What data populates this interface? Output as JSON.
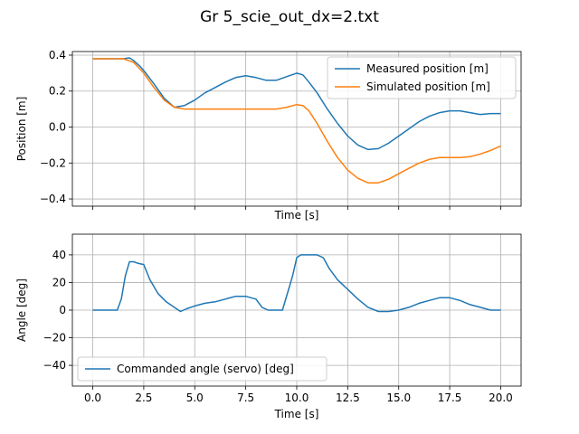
{
  "figure": {
    "title": "Gr 5_scie_out_dx=2.txt"
  },
  "colors": {
    "measured": "#1f77b4",
    "simulated": "#ff7f0e",
    "commanded": "#1f77b4",
    "grid": "#b0b0b0"
  },
  "chart_data": [
    {
      "type": "line",
      "title": "",
      "xlabel": "Time [s]",
      "ylabel": "Position [m]",
      "xlim": [
        -1.0,
        21.0
      ],
      "ylim": [
        -0.44,
        0.42
      ],
      "grid": true,
      "legend_position": "top-right",
      "x_ticks": [
        0,
        2.5,
        5,
        7.5,
        10,
        12.5,
        15,
        17.5,
        20
      ],
      "x_tick_labels_shown": false,
      "y_ticks": [
        -0.4,
        -0.2,
        0.0,
        0.2,
        0.4
      ],
      "y_tick_labels": [
        "−0.4",
        "−0.2",
        "0.0",
        "0.2",
        "0.4"
      ],
      "series": [
        {
          "name": "Measured position [m]",
          "color": "#1f77b4",
          "x": [
            0,
            0.5,
            1.0,
            1.5,
            1.8,
            2.0,
            2.3,
            2.6,
            3.0,
            3.5,
            4.0,
            4.5,
            5.0,
            5.5,
            6.0,
            6.5,
            7.0,
            7.5,
            8.0,
            8.5,
            9.0,
            9.5,
            10.0,
            10.3,
            10.6,
            11.0,
            11.5,
            12.0,
            12.5,
            13.0,
            13.5,
            14.0,
            14.5,
            15.0,
            15.5,
            16.0,
            16.5,
            17.0,
            17.5,
            18.0,
            18.5,
            19.0,
            19.5,
            20.0
          ],
          "y": [
            0.38,
            0.38,
            0.38,
            0.38,
            0.385,
            0.37,
            0.34,
            0.3,
            0.24,
            0.16,
            0.11,
            0.12,
            0.15,
            0.19,
            0.22,
            0.25,
            0.275,
            0.285,
            0.275,
            0.26,
            0.26,
            0.28,
            0.3,
            0.29,
            0.25,
            0.19,
            0.1,
            0.02,
            -0.05,
            -0.1,
            -0.125,
            -0.12,
            -0.09,
            -0.05,
            -0.01,
            0.03,
            0.06,
            0.08,
            0.09,
            0.09,
            0.08,
            0.07,
            0.075,
            0.075
          ]
        },
        {
          "name": "Simulated position [m]",
          "color": "#ff7f0e",
          "x": [
            0,
            0.5,
            1.0,
            1.5,
            2.0,
            2.5,
            3.0,
            3.5,
            4.0,
            4.5,
            5.0,
            6.0,
            7.0,
            8.0,
            9.0,
            9.5,
            10.0,
            10.3,
            10.6,
            11.0,
            11.5,
            12.0,
            12.5,
            13.0,
            13.5,
            14.0,
            14.5,
            15.0,
            15.5,
            16.0,
            16.5,
            17.0,
            17.5,
            18.0,
            18.5,
            19.0,
            19.5,
            20.0
          ],
          "y": [
            0.38,
            0.38,
            0.38,
            0.38,
            0.36,
            0.3,
            0.22,
            0.15,
            0.11,
            0.1,
            0.1,
            0.1,
            0.1,
            0.1,
            0.1,
            0.11,
            0.125,
            0.12,
            0.09,
            0.02,
            -0.08,
            -0.17,
            -0.24,
            -0.285,
            -0.31,
            -0.31,
            -0.29,
            -0.26,
            -0.23,
            -0.2,
            -0.18,
            -0.17,
            -0.17,
            -0.17,
            -0.165,
            -0.15,
            -0.13,
            -0.105
          ]
        }
      ]
    },
    {
      "type": "line",
      "title": "",
      "xlabel": "Time [s]",
      "ylabel": "Angle [deg]",
      "xlim": [
        -1.0,
        21.0
      ],
      "ylim": [
        -55,
        55
      ],
      "grid": true,
      "legend_position": "bottom-left",
      "x_ticks": [
        0,
        2.5,
        5,
        7.5,
        10,
        12.5,
        15,
        17.5,
        20
      ],
      "x_tick_labels": [
        "0.0",
        "2.5",
        "5.0",
        "7.5",
        "10.0",
        "12.5",
        "15.0",
        "17.5",
        "20.0"
      ],
      "y_ticks": [
        -40,
        -20,
        0,
        20,
        40
      ],
      "y_tick_labels": [
        "−40",
        "−20",
        "0",
        "20",
        "40"
      ],
      "series": [
        {
          "name": "Commanded angle (servo) [deg]",
          "color": "#1f77b4",
          "x": [
            0,
            0.5,
            1.0,
            1.2,
            1.4,
            1.6,
            1.8,
            2.0,
            2.2,
            2.5,
            2.8,
            3.2,
            3.6,
            4.0,
            4.3,
            4.6,
            5.0,
            5.5,
            6.0,
            6.5,
            7.0,
            7.5,
            8.0,
            8.3,
            8.6,
            9.0,
            9.3,
            9.6,
            9.8,
            10.0,
            10.2,
            10.5,
            11.0,
            11.3,
            11.6,
            12.0,
            12.5,
            13.0,
            13.5,
            14.0,
            14.5,
            15.0,
            15.5,
            16.0,
            16.5,
            17.0,
            17.5,
            18.0,
            18.5,
            19.0,
            19.5,
            20.0
          ],
          "y": [
            0,
            0,
            0,
            0,
            8,
            25,
            35,
            35,
            34,
            33,
            22,
            12,
            6,
            2,
            -1,
            1,
            3,
            5,
            6,
            8,
            10,
            10,
            8,
            2,
            0,
            0,
            0,
            15,
            25,
            38,
            40,
            40,
            40,
            38,
            30,
            22,
            15,
            8,
            2,
            -1,
            -1,
            0,
            2,
            5,
            7,
            9,
            9,
            7,
            4,
            2,
            0,
            0
          ]
        }
      ]
    }
  ]
}
